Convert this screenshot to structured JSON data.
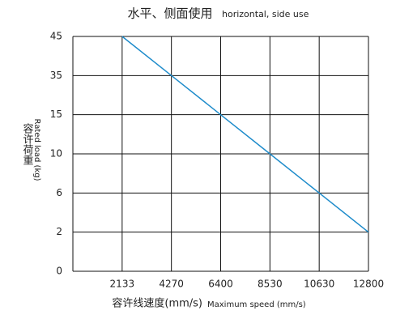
{
  "chart_data": {
    "type": "line",
    "title": "水平、侧面使用",
    "subtitle": "horizontal, side use",
    "x_label": "容许线速度(mm/s)",
    "x_label_en": "Maximum speed (mm/s)",
    "y_label": "容许荷重",
    "y_label_en": "Rated load (kg)",
    "categories": [
      "2133",
      "4270",
      "6400",
      "8530",
      "10630",
      "12800"
    ],
    "series": [
      {
        "name": "Rated load",
        "color": "#1f8ccb",
        "values": [
          45,
          35,
          15,
          10,
          6,
          2
        ]
      }
    ],
    "ylim": [
      0,
      45
    ],
    "yticks": [
      0,
      2,
      6,
      10,
      15,
      35,
      45
    ],
    "grid": true
  }
}
